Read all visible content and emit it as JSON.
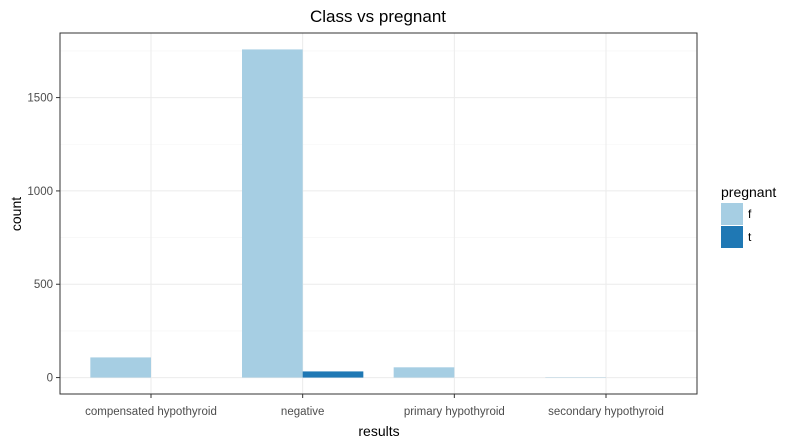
{
  "chart_data": {
    "type": "bar",
    "title": "Class vs pregnant",
    "xlabel": "results",
    "ylabel": "count",
    "categories": [
      "compensated hypothyroid",
      "negative",
      "primary hypothyroid",
      "secondary hypothyroid"
    ],
    "series": [
      {
        "name": "f",
        "color": "#a6cee3",
        "values": [
          108,
          1758,
          55,
          2
        ]
      },
      {
        "name": "t",
        "color": "#1f78b4",
        "values": [
          0,
          33,
          0,
          0
        ]
      }
    ],
    "yticks": [
      0,
      500,
      1000,
      1500
    ],
    "ylim": [
      -88,
      1846
    ],
    "legend": {
      "title": "pregnant",
      "placement": "right"
    },
    "grid": true
  }
}
